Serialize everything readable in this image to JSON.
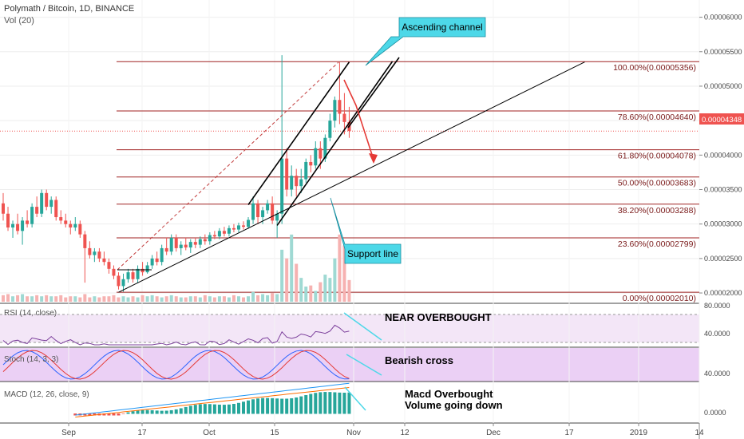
{
  "header": {
    "title": "Polymath / Bitcoin, 1D, BINANCE",
    "volume_label": "Vol (20)"
  },
  "price_axis": {
    "ticks": [
      "0.00006000",
      "0.00005500",
      "0.00005000",
      "0.00004500",
      "0.00004000",
      "0.00003500",
      "0.00003000",
      "0.00002500",
      "0.00002000"
    ],
    "last_price": "0.00004348"
  },
  "fib_levels": [
    {
      "label": "100.00%(0.00005356)",
      "value": 5.356e-05
    },
    {
      "label": "78.60%(0.00004640)",
      "value": 4.64e-05
    },
    {
      "label": "61.80%(0.00004078)",
      "value": 4.078e-05
    },
    {
      "label": "50.00%(0.00003683)",
      "value": 3.683e-05
    },
    {
      "label": "38.20%(0.00003288)",
      "value": 3.288e-05
    },
    {
      "label": "23.60%(0.00002799)",
      "value": 2.799e-05
    },
    {
      "label": "0.00%(0.00002010)",
      "value": 2.01e-05
    }
  ],
  "annotations": {
    "ascending_channel": "Ascending channel",
    "support_line": "Support line",
    "rsi_note": "NEAR OVERBOUGHT",
    "stoch_note": "Bearish cross",
    "macd_note_1": "Macd Overbought",
    "macd_note_2": "Volume going down"
  },
  "rsi": {
    "label": "RSI (14, close)",
    "ticks": [
      "80.0000",
      "40.0000"
    ]
  },
  "stoch": {
    "label": "Stoch (14, 3, 3)",
    "ticks": [
      "40.0000"
    ]
  },
  "macd": {
    "label": "MACD (12, 26, close, 9)",
    "ticks": [
      "0.0000"
    ]
  },
  "time_axis": {
    "ticks": [
      "Sep",
      "17",
      "Oct",
      "15",
      "Nov",
      "12",
      "Dec",
      "17",
      "2019",
      "14"
    ]
  },
  "colors": {
    "up": "#26a69a",
    "down": "#ef5350",
    "fib": "#a02222",
    "rsi_fill": "#f3e6f7",
    "stoch_fill": "#ebd0f5",
    "callout": "#4dd8e8",
    "price_tag": "#ef5350"
  },
  "chart_data": {
    "type": "candlestick",
    "title": "Polymath / Bitcoin, 1D, BINANCE",
    "ylim": [
      1.85e-05,
      6.25e-05
    ],
    "candles": [
      [
        3.3e-05,
        3.45e-05,
        3.05e-05,
        3.15e-05
      ],
      [
        3.15e-05,
        3.25e-05,
        2.9e-05,
        2.95e-05
      ],
      [
        2.95e-05,
        3.05e-05,
        2.8e-05,
        3e-05
      ],
      [
        3e-05,
        3.15e-05,
        2.85e-05,
        2.9e-05
      ],
      [
        2.9e-05,
        3.1e-05,
        2.7e-05,
        3.05e-05
      ],
      [
        3.05e-05,
        3.2e-05,
        2.95e-05,
        3e-05
      ],
      [
        3e-05,
        3.3e-05,
        2.95e-05,
        3.25e-05
      ],
      [
        3.25e-05,
        3.4e-05,
        3.1e-05,
        3.15e-05
      ],
      [
        3.15e-05,
        3.5e-05,
        3.1e-05,
        3.45e-05
      ],
      [
        3.45e-05,
        3.5e-05,
        3.2e-05,
        3.25e-05
      ],
      [
        3.25e-05,
        3.4e-05,
        3.15e-05,
        3.35e-05
      ],
      [
        3.35e-05,
        3.4e-05,
        3.05e-05,
        3.1e-05
      ],
      [
        3.1e-05,
        3.2e-05,
        3e-05,
        3.05e-05
      ],
      [
        3.05e-05,
        3.15e-05,
        2.95e-05,
        3e-05
      ],
      [
        3e-05,
        3.05e-05,
        2.85e-05,
        2.95e-05
      ],
      [
        2.95e-05,
        3.1e-05,
        2.9e-05,
        3e-05
      ],
      [
        3e-05,
        3.05e-05,
        2.8e-05,
        2.85e-05
      ],
      [
        2.85e-05,
        2.9e-05,
        2.15e-05,
        2.65e-05
      ],
      [
        2.65e-05,
        2.75e-05,
        2.5e-05,
        2.55e-05
      ],
      [
        2.55e-05,
        2.65e-05,
        2.45e-05,
        2.6e-05
      ],
      [
        2.6e-05,
        2.65e-05,
        2.45e-05,
        2.5e-05
      ],
      [
        2.5e-05,
        2.6e-05,
        2.4e-05,
        2.45e-05
      ],
      [
        2.45e-05,
        2.5e-05,
        2.28e-05,
        2.35e-05
      ],
      [
        2.35e-05,
        2.4e-05,
        2.2e-05,
        2.25e-05
      ],
      [
        2.25e-05,
        2.3e-05,
        2.05e-05,
        2.1e-05
      ],
      [
        2.1e-05,
        2.28e-05,
        2.02e-05,
        2.2e-05
      ],
      [
        2.2e-05,
        2.35e-05,
        2.15e-05,
        2.3e-05
      ],
      [
        2.3e-05,
        2.35e-05,
        2.15e-05,
        2.2e-05
      ],
      [
        2.2e-05,
        2.4e-05,
        2.15e-05,
        2.35e-05
      ],
      [
        2.35e-05,
        2.45e-05,
        2.25e-05,
        2.3e-05
      ],
      [
        2.3e-05,
        2.45e-05,
        2.28e-05,
        2.4e-05
      ],
      [
        2.4e-05,
        2.55e-05,
        2.35e-05,
        2.5e-05
      ],
      [
        2.5e-05,
        2.6e-05,
        2.4e-05,
        2.45e-05
      ],
      [
        2.45e-05,
        2.7e-05,
        2.4e-05,
        2.65e-05
      ],
      [
        2.65e-05,
        2.8e-05,
        2.55e-05,
        2.6e-05
      ],
      [
        2.6e-05,
        2.85e-05,
        2.55e-05,
        2.8e-05
      ],
      [
        2.8e-05,
        2.85e-05,
        2.6e-05,
        2.65e-05
      ],
      [
        2.65e-05,
        2.75e-05,
        2.55e-05,
        2.7e-05
      ],
      [
        2.7e-05,
        2.8e-05,
        2.62e-05,
        2.66e-05
      ],
      [
        2.66e-05,
        2.78e-05,
        2.58e-05,
        2.74e-05
      ],
      [
        2.74e-05,
        2.8e-05,
        2.65e-05,
        2.7e-05
      ],
      [
        2.7e-05,
        2.82e-05,
        2.65e-05,
        2.78e-05
      ],
      [
        2.78e-05,
        2.85e-05,
        2.7e-05,
        2.75e-05
      ],
      [
        2.75e-05,
        2.88e-05,
        2.7e-05,
        2.84e-05
      ],
      [
        2.84e-05,
        2.9e-05,
        2.78e-05,
        2.82e-05
      ],
      [
        2.82e-05,
        2.94e-05,
        2.78e-05,
        2.9e-05
      ],
      [
        2.9e-05,
        2.96e-05,
        2.82e-05,
        2.86e-05
      ],
      [
        2.86e-05,
        2.98e-05,
        2.82e-05,
        2.94e-05
      ],
      [
        2.94e-05,
        3e-05,
        2.88e-05,
        2.92e-05
      ],
      [
        2.92e-05,
        3.02e-05,
        2.88e-05,
        2.98e-05
      ],
      [
        2.98e-05,
        3.04e-05,
        2.92e-05,
        2.96e-05
      ],
      [
        2.96e-05,
        3.1e-05,
        2.93e-05,
        3.06e-05
      ],
      [
        3.06e-05,
        3.4e-05,
        3e-05,
        3.3e-05
      ],
      [
        3.3e-05,
        3.35e-05,
        3e-05,
        3.1e-05
      ],
      [
        3.1e-05,
        3.25e-05,
        3e-05,
        3.2e-05
      ],
      [
        3.2e-05,
        3.35e-05,
        3.15e-05,
        3.3e-05
      ],
      [
        3.3e-05,
        3.4e-05,
        3e-05,
        3.05e-05
      ],
      [
        3.05e-05,
        3.2e-05,
        2.8e-05,
        3.15e-05
      ],
      [
        3.15e-05,
        5.45e-05,
        3e-05,
        3.95e-05
      ],
      [
        3.95e-05,
        4.1e-05,
        3.4e-05,
        3.5e-05
      ],
      [
        3.5e-05,
        3.85e-05,
        3.4e-05,
        3.7e-05
      ],
      [
        3.7e-05,
        3.8e-05,
        3.4e-05,
        3.55e-05
      ],
      [
        3.55e-05,
        3.8e-05,
        3.45e-05,
        3.65e-05
      ],
      [
        3.65e-05,
        3.95e-05,
        3.6e-05,
        3.9e-05
      ],
      [
        3.9e-05,
        4e-05,
        3.75e-05,
        3.85e-05
      ],
      [
        3.85e-05,
        4.2e-05,
        3.8e-05,
        4.1e-05
      ],
      [
        4.1e-05,
        4.2e-05,
        3.8e-05,
        3.95e-05
      ],
      [
        3.95e-05,
        4.3e-05,
        3.9e-05,
        4.25e-05
      ],
      [
        4.25e-05,
        4.6e-05,
        4.2e-05,
        4.5e-05
      ],
      [
        4.5e-05,
        4.85e-05,
        4.4e-05,
        4.8e-05
      ],
      [
        4.8e-05,
        5.35e-05,
        4.45e-05,
        4.6e-05
      ],
      [
        4.6e-05,
        4.9e-05,
        4.3e-05,
        4.48e-05
      ],
      [
        4.48e-05,
        4.7e-05,
        4.25e-05,
        4.35e-05
      ]
    ],
    "volume": [
      6,
      7,
      5,
      6,
      7,
      5,
      5,
      6,
      5,
      6,
      5,
      5,
      6,
      4,
      5,
      5,
      4,
      7,
      4,
      5,
      4,
      5,
      5,
      6,
      4,
      5,
      4,
      5,
      4,
      6,
      5,
      6,
      5,
      4,
      5,
      6,
      5,
      4,
      4,
      5,
      5,
      4,
      6,
      5,
      4,
      5,
      5,
      4,
      6,
      5,
      4,
      5,
      9,
      6,
      7,
      6,
      8,
      7,
      48,
      40,
      62,
      35,
      22,
      14,
      15,
      10,
      18,
      25,
      22,
      40,
      62,
      52,
      20
    ],
    "ascending_channel": {
      "lower": [
        [
          57,
          2.98e-05
        ],
        [
          81,
          5.36e-05
        ]
      ],
      "upper": [
        [
          51,
          3.28e-05
        ],
        [
          72,
          5.35e-05
        ]
      ]
    },
    "support_line": [
      [
        24,
        2.01e-05
      ],
      [
        121,
        5.35e-05
      ]
    ]
  }
}
